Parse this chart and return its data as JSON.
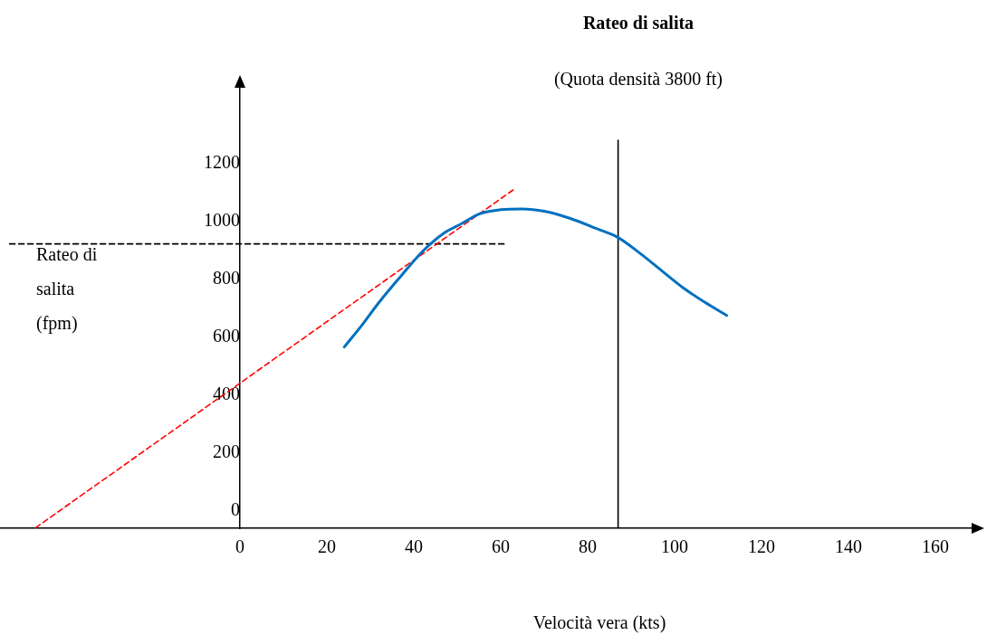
{
  "chart_data": {
    "type": "line",
    "title": "Rateo di salita",
    "subtitle": "(Quota densità 3800 ft)",
    "xlabel": "Velocità vera (kts)",
    "ylabel": "Rateo di salita (fpm)",
    "xlim": [
      -55,
      170
    ],
    "ylim": [
      -60,
      1480
    ],
    "xticks": [
      0,
      20,
      40,
      60,
      80,
      100,
      120,
      140,
      160
    ],
    "yticks": [
      0,
      200,
      400,
      600,
      800,
      1000,
      1200
    ],
    "grid": false,
    "legend": false,
    "marker": "none",
    "series": [
      {
        "color": "#0070c0",
        "line_style": "solid",
        "x": [
          24,
          28,
          32,
          37,
          42,
          47,
          51,
          55,
          60,
          65,
          70,
          76,
          82,
          87,
          92,
          97,
          102,
          107,
          112
        ],
        "values": [
          566,
          640,
          720,
          810,
          896,
          960,
          992,
          1025,
          1040,
          1043,
          1035,
          1010,
          975,
          944,
          890,
          830,
          770,
          720,
          675
        ]
      },
      {
        "color": "#ff0000",
        "line_style": "dashed",
        "x": [
          -47,
          63
        ],
        "values": [
          -58,
          1110
        ]
      },
      {
        "color": "#000000",
        "line_style": "dashed",
        "x": [
          -53,
          61
        ],
        "values": [
          922,
          922
        ]
      },
      {
        "color": "#000000",
        "line_style": "solid",
        "x": [
          87,
          87
        ],
        "values": [
          -60,
          1280
        ]
      }
    ]
  }
}
